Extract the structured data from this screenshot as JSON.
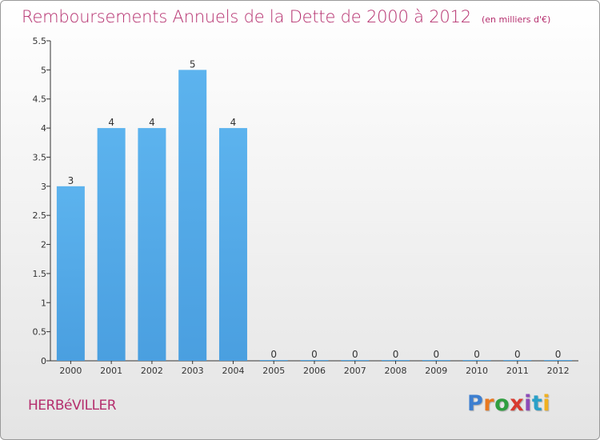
{
  "chart_data": {
    "type": "bar",
    "title": "Remboursements Annuels de la Dette de 2000 à 2012",
    "unit_note": "(en milliers d'€)",
    "categories": [
      "2000",
      "2001",
      "2002",
      "2003",
      "2004",
      "2005",
      "2006",
      "2007",
      "2008",
      "2009",
      "2010",
      "2011",
      "2012"
    ],
    "values": [
      3,
      4,
      4,
      5,
      4,
      0,
      0,
      0,
      0,
      0,
      0,
      0,
      0
    ],
    "data_labels": [
      "3",
      "4",
      "4",
      "5",
      "4",
      "0",
      "0",
      "0",
      "0",
      "0",
      "0",
      "0",
      "0"
    ],
    "y_ticks": [
      "0",
      "0.5",
      "1",
      "1.5",
      "2",
      "2.5",
      "3",
      "3.5",
      "4",
      "4.5",
      "5",
      "5.5"
    ],
    "ylim": [
      0,
      5.5
    ],
    "bar_color": "#4a9fe0",
    "grid": false
  },
  "commune": "HERBéVILLER",
  "logo": {
    "letters": [
      "P",
      "r",
      "o",
      "x",
      "i",
      "t",
      "i"
    ]
  },
  "colors": {
    "title": "#b52f6e",
    "axis": "#333333"
  }
}
